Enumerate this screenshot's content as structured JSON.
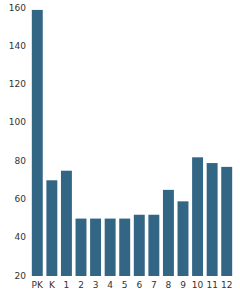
{
  "chart_data": {
    "type": "bar",
    "categories": [
      "PK",
      "K",
      "1",
      "2",
      "3",
      "4",
      "5",
      "6",
      "7",
      "8",
      "9",
      "10",
      "11",
      "12"
    ],
    "values": [
      159,
      70,
      75,
      50,
      50,
      50,
      50,
      52,
      52,
      65,
      59,
      82,
      79,
      77
    ],
    "color": "#336685",
    "ylim": [
      20,
      160
    ],
    "yticks": [
      20,
      40,
      60,
      80,
      100,
      120,
      140,
      160
    ],
    "grid": false
  }
}
